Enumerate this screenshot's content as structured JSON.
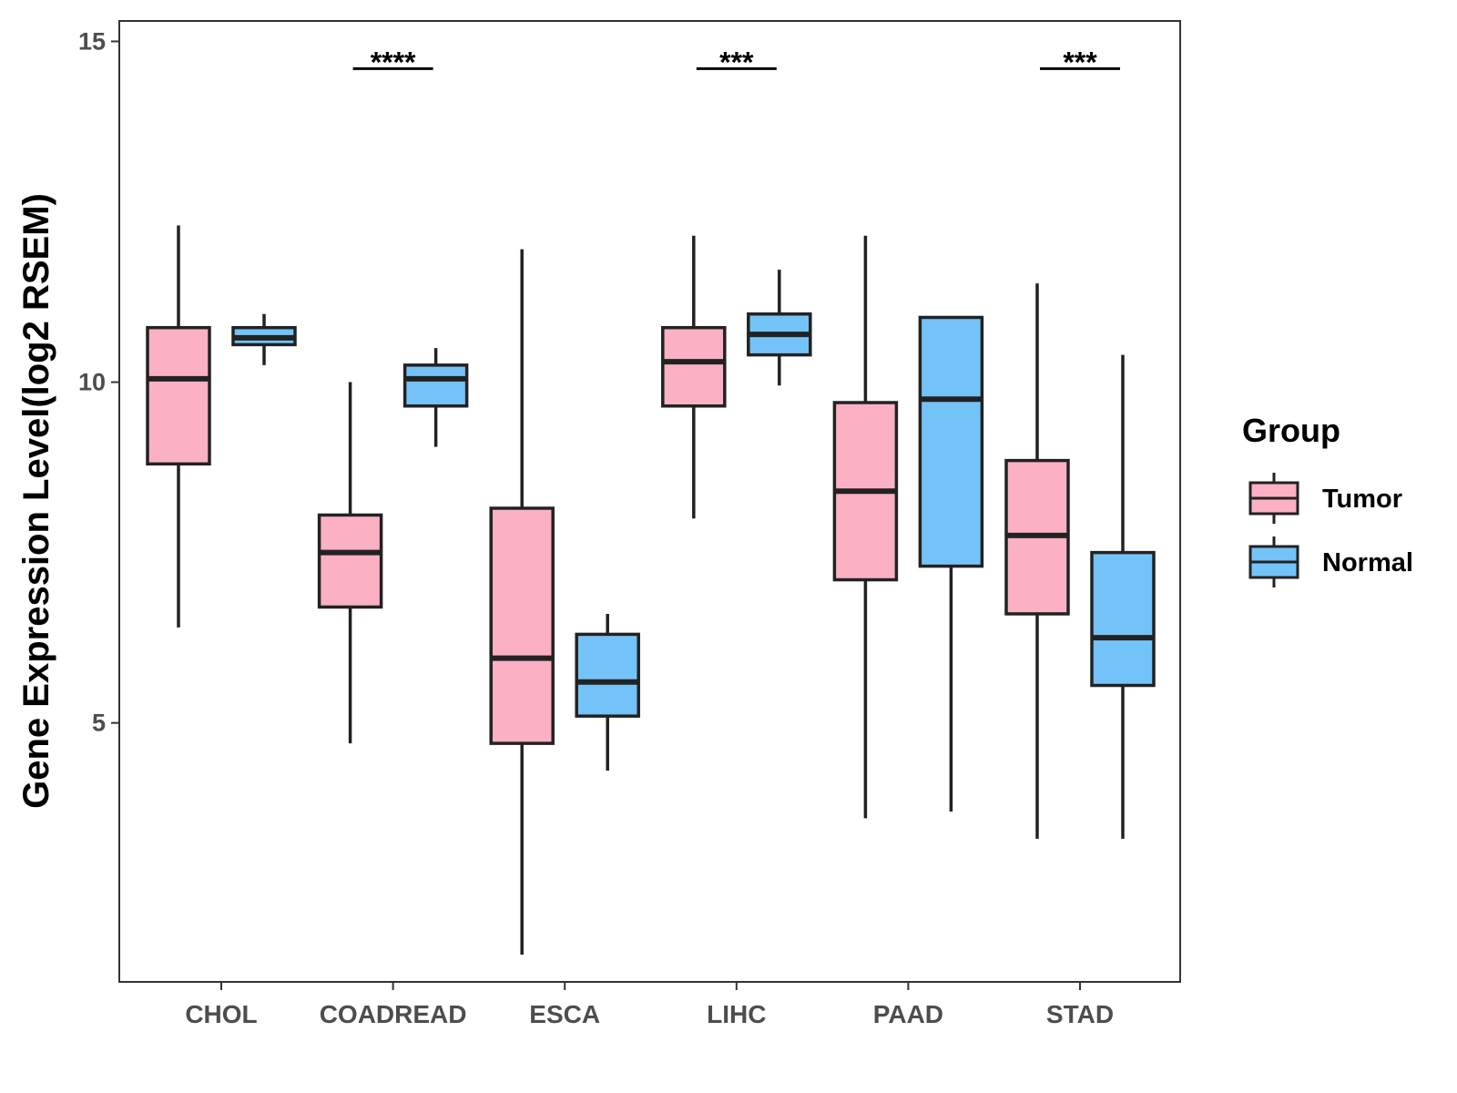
{
  "chart_data": {
    "type": "boxplot",
    "title": "",
    "xlabel": "",
    "ylabel": "Gene Expression Level(log2 RSEM)",
    "ylim": [
      1.2,
      15.3
    ],
    "yticks": [
      5,
      10,
      15
    ],
    "grid": false,
    "categories": [
      "CHOL",
      "COADREAD",
      "ESCA",
      "LIHC",
      "PAAD",
      "STAD"
    ],
    "legend": {
      "title": "Group",
      "position": "right",
      "entries": [
        {
          "name": "Tumor",
          "color": "#FBB1C3"
        },
        {
          "name": "Normal",
          "color": "#74C3F8"
        }
      ]
    },
    "series": [
      {
        "name": "Tumor",
        "color": "#FBB1C3",
        "boxes": [
          {
            "category": "CHOL",
            "min": 6.4,
            "q1": 8.8,
            "median": 10.05,
            "q3": 10.8,
            "max": 12.3
          },
          {
            "category": "COADREAD",
            "min": 4.7,
            "q1": 6.7,
            "median": 7.5,
            "q3": 8.05,
            "max": 10.0
          },
          {
            "category": "ESCA",
            "min": 1.6,
            "q1": 4.7,
            "median": 5.95,
            "q3": 8.15,
            "max": 11.95
          },
          {
            "category": "LIHC",
            "min": 8.0,
            "q1": 9.65,
            "median": 10.3,
            "q3": 10.8,
            "max": 12.15
          },
          {
            "category": "PAAD",
            "min": 3.6,
            "q1": 7.1,
            "median": 8.4,
            "q3": 9.7,
            "max": 12.15
          },
          {
            "category": "STAD",
            "min": 3.3,
            "q1": 6.6,
            "median": 7.75,
            "q3": 8.85,
            "max": 11.45
          }
        ]
      },
      {
        "name": "Normal",
        "color": "#74C3F8",
        "boxes": [
          {
            "category": "CHOL",
            "min": 10.25,
            "q1": 10.55,
            "median": 10.65,
            "q3": 10.8,
            "max": 11.0
          },
          {
            "category": "COADREAD",
            "min": 9.05,
            "q1": 9.65,
            "median": 10.05,
            "q3": 10.25,
            "max": 10.5
          },
          {
            "category": "ESCA",
            "min": 4.3,
            "q1": 5.1,
            "median": 5.6,
            "q3": 6.3,
            "max": 6.6
          },
          {
            "category": "LIHC",
            "min": 9.95,
            "q1": 10.4,
            "median": 10.7,
            "q3": 11.0,
            "max": 11.65
          },
          {
            "category": "PAAD",
            "min": 3.7,
            "q1": 7.3,
            "median": 9.75,
            "q3": 10.95,
            "max": 10.95
          },
          {
            "category": "STAD",
            "min": 3.3,
            "q1": 5.55,
            "median": 6.25,
            "q3": 7.5,
            "max": 10.4
          }
        ]
      }
    ],
    "annotations": [
      {
        "category": "COADREAD",
        "label": "****",
        "y": 14.6
      },
      {
        "category": "LIHC",
        "label": "***",
        "y": 14.6
      },
      {
        "category": "STAD",
        "label": "***",
        "y": 14.6
      }
    ]
  }
}
